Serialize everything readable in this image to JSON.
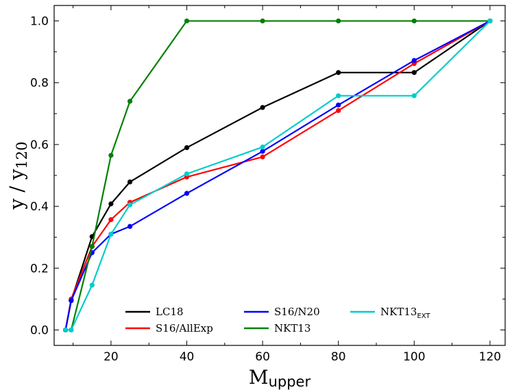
{
  "chart_data": {
    "type": "line",
    "title": "",
    "xlabel": {
      "main": "M",
      "sub": "upper"
    },
    "ylabel": {
      "main": "y / y",
      "sub": "120"
    },
    "xlim": [
      5,
      124
    ],
    "ylim": [
      -0.05,
      1.05
    ],
    "xticks": [
      20,
      40,
      60,
      80,
      100,
      120
    ],
    "yticks": [
      0.0,
      0.2,
      0.4,
      0.6,
      0.8,
      1.0
    ],
    "xtick_labels": [
      "20",
      "40",
      "60",
      "80",
      "100",
      "120"
    ],
    "ytick_labels": [
      "0.0",
      "0.2",
      "0.4",
      "0.6",
      "0.8",
      "1.0"
    ],
    "grid": false,
    "legend_placement": "lower-center",
    "series": [
      {
        "name": "LC18",
        "color": "#000000",
        "x": [
          8,
          9.5,
          15,
          20,
          25,
          40,
          60,
          80,
          100,
          120
        ],
        "y": [
          0.0,
          0.095,
          0.302,
          0.408,
          0.479,
          0.59,
          0.72,
          0.833,
          0.833,
          1.0
        ]
      },
      {
        "name": "S16/AllExp",
        "color": "#ff0000",
        "x": [
          8,
          9.5,
          15,
          20,
          25,
          40,
          60,
          80,
          100,
          120
        ],
        "y": [
          0.0,
          0.1,
          0.27,
          0.357,
          0.413,
          0.495,
          0.56,
          0.71,
          0.862,
          1.0
        ]
      },
      {
        "name": "S16/N20",
        "color": "#0000ff",
        "x": [
          8,
          9.5,
          15,
          20,
          25,
          40,
          60,
          80,
          100,
          120
        ],
        "y": [
          0.0,
          0.095,
          0.25,
          0.31,
          0.335,
          0.442,
          0.578,
          0.728,
          0.872,
          1.0
        ]
      },
      {
        "name": "NKT13",
        "color": "#008000",
        "x": [
          9.5,
          15,
          20,
          25,
          40,
          60,
          80,
          100,
          120
        ],
        "y": [
          0.0,
          0.27,
          0.565,
          0.74,
          1.0,
          1.0,
          1.0,
          1.0,
          1.0
        ]
      },
      {
        "name": "NKT13",
        "name_sub": "EXT",
        "color": "#00cccc",
        "x": [
          8,
          9.5,
          15,
          20,
          25,
          40,
          60,
          80,
          100,
          120
        ],
        "y": [
          0.0,
          0.0,
          0.145,
          0.31,
          0.405,
          0.505,
          0.592,
          0.758,
          0.758,
          1.0
        ]
      }
    ],
    "legend_order": [
      0,
      1,
      2,
      3,
      4
    ]
  }
}
